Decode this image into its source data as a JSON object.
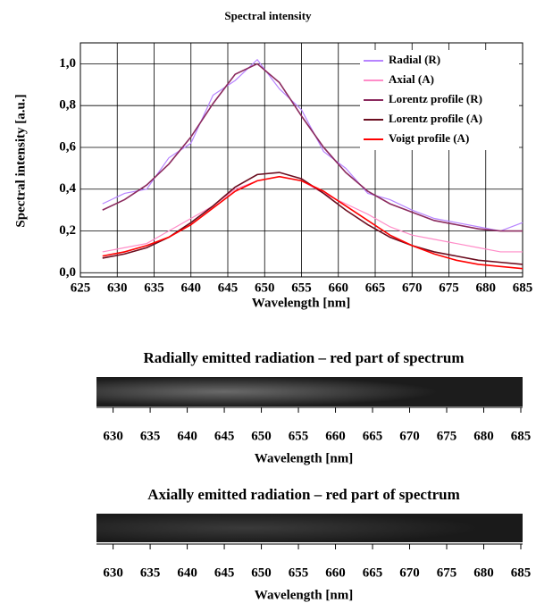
{
  "chart_data": {
    "type": "line",
    "title": "Spectral intensity",
    "xlabel": "Wavelength [nm]",
    "ylabel": "Spectral intensity [a.u.]",
    "x": [
      628,
      631,
      634,
      637,
      640,
      643,
      646,
      649,
      652,
      655,
      658,
      661,
      664,
      667,
      670,
      673,
      676,
      679,
      682,
      685
    ],
    "series": [
      {
        "name": "Radial (R)",
        "color": "#b784ff",
        "values": [
          0.33,
          0.38,
          0.4,
          0.55,
          0.62,
          0.85,
          0.92,
          1.02,
          0.88,
          0.78,
          0.58,
          0.5,
          0.38,
          0.35,
          0.3,
          0.26,
          0.24,
          0.22,
          0.2,
          0.24
        ]
      },
      {
        "name": "Axial (A)",
        "color": "#ff8cc8",
        "values": [
          0.1,
          0.12,
          0.14,
          0.2,
          0.26,
          0.32,
          0.4,
          0.44,
          0.46,
          0.44,
          0.38,
          0.33,
          0.28,
          0.22,
          0.18,
          0.16,
          0.14,
          0.12,
          0.1,
          0.1
        ]
      },
      {
        "name": "Lorentz profile (R)",
        "color": "#8b2a5e",
        "values": [
          0.3,
          0.35,
          0.42,
          0.52,
          0.65,
          0.81,
          0.95,
          1.0,
          0.91,
          0.75,
          0.6,
          0.48,
          0.39,
          0.33,
          0.29,
          0.25,
          0.23,
          0.21,
          0.2,
          0.2
        ]
      },
      {
        "name": "Lorentz profile (A)",
        "color": "#6b0d1f",
        "values": [
          0.07,
          0.09,
          0.12,
          0.17,
          0.24,
          0.32,
          0.41,
          0.47,
          0.48,
          0.45,
          0.38,
          0.3,
          0.23,
          0.17,
          0.13,
          0.1,
          0.08,
          0.06,
          0.05,
          0.04
        ]
      },
      {
        "name": "Voigt profile (A)",
        "color": "#ff0000",
        "values": [
          0.08,
          0.1,
          0.13,
          0.17,
          0.23,
          0.31,
          0.39,
          0.44,
          0.46,
          0.44,
          0.39,
          0.32,
          0.25,
          0.18,
          0.13,
          0.09,
          0.06,
          0.04,
          0.03,
          0.02
        ]
      }
    ],
    "xlim": [
      625,
      685
    ],
    "xticks": [
      625,
      630,
      635,
      640,
      645,
      650,
      655,
      660,
      665,
      670,
      675,
      680,
      685
    ],
    "ylim": [
      -0.02,
      1.1
    ],
    "yticks": [
      {
        "value": 0,
        "label": "0,0"
      },
      {
        "value": 0.2,
        "label": "0,2"
      },
      {
        "value": 0.4,
        "label": "0,4"
      },
      {
        "value": 0.6,
        "label": "0,6"
      },
      {
        "value": 0.8,
        "label": "0,8"
      },
      {
        "value": 1,
        "label": "1,0"
      }
    ],
    "grid": true,
    "legend": "upper right"
  },
  "spectra": [
    {
      "title": "Radially emitted radiation – red part of spectrum",
      "xlim": [
        628,
        685
      ],
      "xticks": [
        630,
        635,
        640,
        645,
        650,
        655,
        660,
        665,
        670,
        675,
        680,
        685
      ],
      "xlabel": "Wavelength [nm]"
    },
    {
      "title": "Axially emitted radiation – red part of spectrum",
      "xlim": [
        628,
        685
      ],
      "xticks": [
        630,
        635,
        640,
        645,
        650,
        655,
        660,
        665,
        670,
        675,
        680,
        685
      ],
      "xlabel": "Wavelength [nm]"
    }
  ]
}
